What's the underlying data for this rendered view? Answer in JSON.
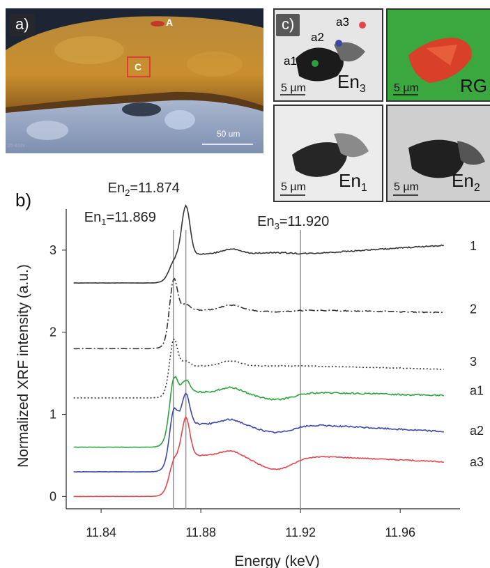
{
  "panel_a": {
    "label": "a)",
    "marker_a": "A",
    "marker_c": "C",
    "scale_bar": "50 um",
    "corner_text": "25 400x"
  },
  "panel_b": {
    "label": "b)"
  },
  "panel_c": {
    "label": "c)",
    "points": [
      "a1",
      "a2",
      "a3"
    ],
    "tiles": [
      {
        "name": "En3",
        "base": "En",
        "sub": "3",
        "scale": "5 µm"
      },
      {
        "name": "RGB",
        "base": "RG",
        "sub": "",
        "scale": "5 µm"
      },
      {
        "name": "En1",
        "base": "En",
        "sub": "1",
        "scale": "5 µm"
      },
      {
        "name": "En2",
        "base": "En",
        "sub": "2",
        "scale": "5 µm"
      }
    ]
  },
  "chart_data": {
    "type": "line",
    "xlabel": "Energy (keV)",
    "ylabel": "Normalized XRF intensity (a.u.)",
    "xlim": [
      11.826,
      11.984
    ],
    "ylim": [
      -0.15,
      3.5
    ],
    "xticks": [
      "11.84",
      "11.88",
      "11.92",
      "11.96"
    ],
    "xtick_values": [
      11.84,
      11.88,
      11.92,
      11.96
    ],
    "yticks": [
      "0",
      "1",
      "2",
      "3"
    ],
    "ytick_values": [
      0,
      1,
      2,
      3
    ],
    "vlines": [
      {
        "x": 11.869,
        "label_base": "En",
        "label_sub": "1",
        "label_value": "=11.869"
      },
      {
        "x": 11.874,
        "label_base": "En",
        "label_sub": "2",
        "label_value": "=11.874"
      },
      {
        "x": 11.92,
        "label_base": "En",
        "label_sub": "3",
        "label_value": "=11.920"
      }
    ],
    "series": [
      {
        "name": "1",
        "color": "#333333",
        "dash": "",
        "pre": 2.6,
        "peak1": 0.05,
        "peak2": 0.95,
        "post": 2.95,
        "dip": 2.97,
        "end": 3.06,
        "noise": 0.015
      },
      {
        "name": "2",
        "color": "#333333",
        "dash": "9,3,2,3",
        "pre": 1.8,
        "peak1": 2.75,
        "peak2": 2.35,
        "post": 2.27,
        "dip": 2.25,
        "end": 2.24,
        "noise": 0.012
      },
      {
        "name": "3",
        "color": "#333333",
        "dash": "2,3",
        "pre": 1.2,
        "peak1": 2.0,
        "peak2": 1.65,
        "post": 1.59,
        "dip": 1.59,
        "end": 1.55,
        "noise": 0.01
      },
      {
        "name": "a1",
        "color": "#2ca23e",
        "dash": "",
        "pre": 0.6,
        "peak1": 1.58,
        "peak2": 1.42,
        "post": 1.27,
        "dip": 1.18,
        "end": 1.23,
        "noise": 0.018
      },
      {
        "name": "a2",
        "color": "#3b47a8",
        "dash": "",
        "pre": 0.3,
        "peak1": 1.18,
        "peak2": 1.25,
        "post": 0.88,
        "dip": 0.78,
        "end": 0.79,
        "noise": 0.018
      },
      {
        "name": "a3",
        "color": "#e0474d",
        "dash": "",
        "pre": 0.0,
        "peak1": 0.55,
        "peak2": 0.97,
        "post": 0.5,
        "dip": 0.33,
        "end": 0.42,
        "noise": 0.012
      }
    ]
  }
}
